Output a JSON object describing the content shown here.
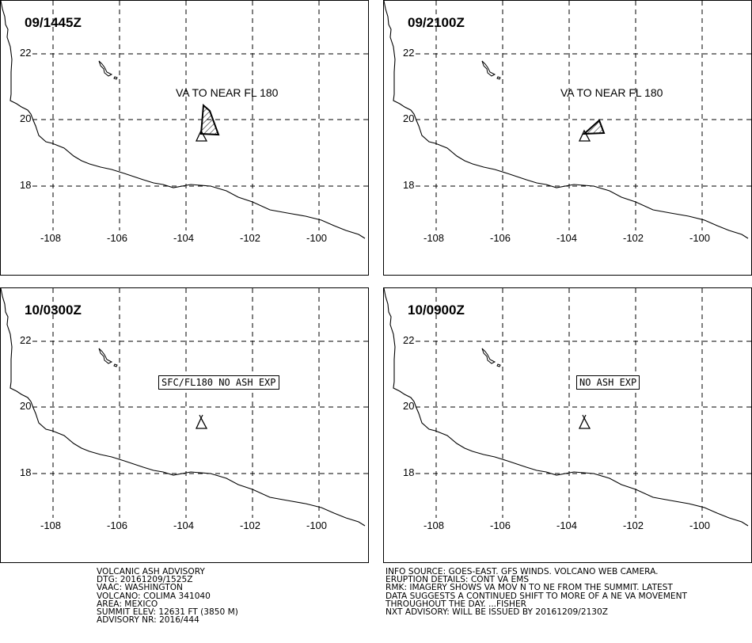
{
  "lat_labels": [
    "22",
    "20",
    "18"
  ],
  "lon_labels": [
    "-108",
    "-106",
    "-104",
    "-102",
    "-100"
  ],
  "panels": [
    {
      "time": "09/1445Z",
      "text": "VA TO NEAR FL 180",
      "boxed": false
    },
    {
      "time": "09/2100Z",
      "text": "VA TO NEAR FL 180",
      "boxed": false
    },
    {
      "time": "10/0300Z",
      "text": "SFC/FL180 NO ASH EXP",
      "boxed": true
    },
    {
      "time": "10/0900Z",
      "text": "NO ASH EXP",
      "boxed": true
    }
  ],
  "advisory_left": [
    "VOLCANIC ASH ADVISORY",
    "DTG: 20161209/1525Z",
    "VAAC: WASHINGTON",
    "VOLCANO: COLIMA 341040",
    "AREA: MEXICO",
    "SUMMIT ELEV: 12631 FT (3850 M)",
    "ADVISORY NR: 2016/444"
  ],
  "advisory_right": [
    "INFO SOURCE: GOES-EAST. GFS WINDS. VOLCANO WEB CAMERA.",
    "ERUPTION DETAILS: CONT VA EMS",
    "RMK: IMAGERY SHOWS VA MOV N TO NE FROM THE SUMMIT. LATEST",
    "DATA SUGGESTS A CONTINUED SHIFT TO MORE OF A NE VA MOVEMENT",
    "THROUGHOUT THE DAY. ...FISHER",
    "NXT ADVISORY: WILL BE ISSUED BY 20161209/2130Z"
  ]
}
